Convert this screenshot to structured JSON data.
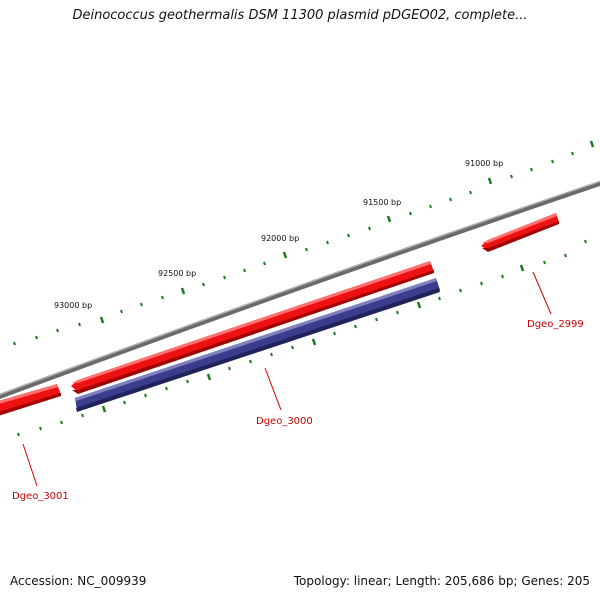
{
  "header": {
    "title": "Deinococcus geothermalis DSM 11300 plasmid pDGEO02, complete..."
  },
  "footer": {
    "accession": "Accession: NC_009939",
    "summary": "Topology: linear; Length: 205,686 bp; Genes: 205"
  },
  "ruler": {
    "labels": [
      "91000 bp",
      "91500 bp",
      "92000 bp",
      "92500 bp",
      "93000 bp"
    ]
  },
  "genes": [
    {
      "id": "Dgeo_2999",
      "label": "Dgeo_2999",
      "strand": "forward",
      "color": "#ee1111"
    },
    {
      "id": "Dgeo_3000",
      "label": "Dgeo_3000",
      "strand": "forward",
      "color": "#ee1111"
    },
    {
      "id": "Dgeo_3000_cds",
      "label": "",
      "strand": "forward",
      "color": "#3c3c8c"
    },
    {
      "id": "Dgeo_3001",
      "label": "Dgeo_3001",
      "strand": "forward",
      "color": "#ee1111"
    }
  ],
  "colors": {
    "backbone": "#808080",
    "tick": "#1e7a1e",
    "gene": "#ee1111",
    "cds": "#3c3c8c",
    "label": "#cc0000"
  }
}
